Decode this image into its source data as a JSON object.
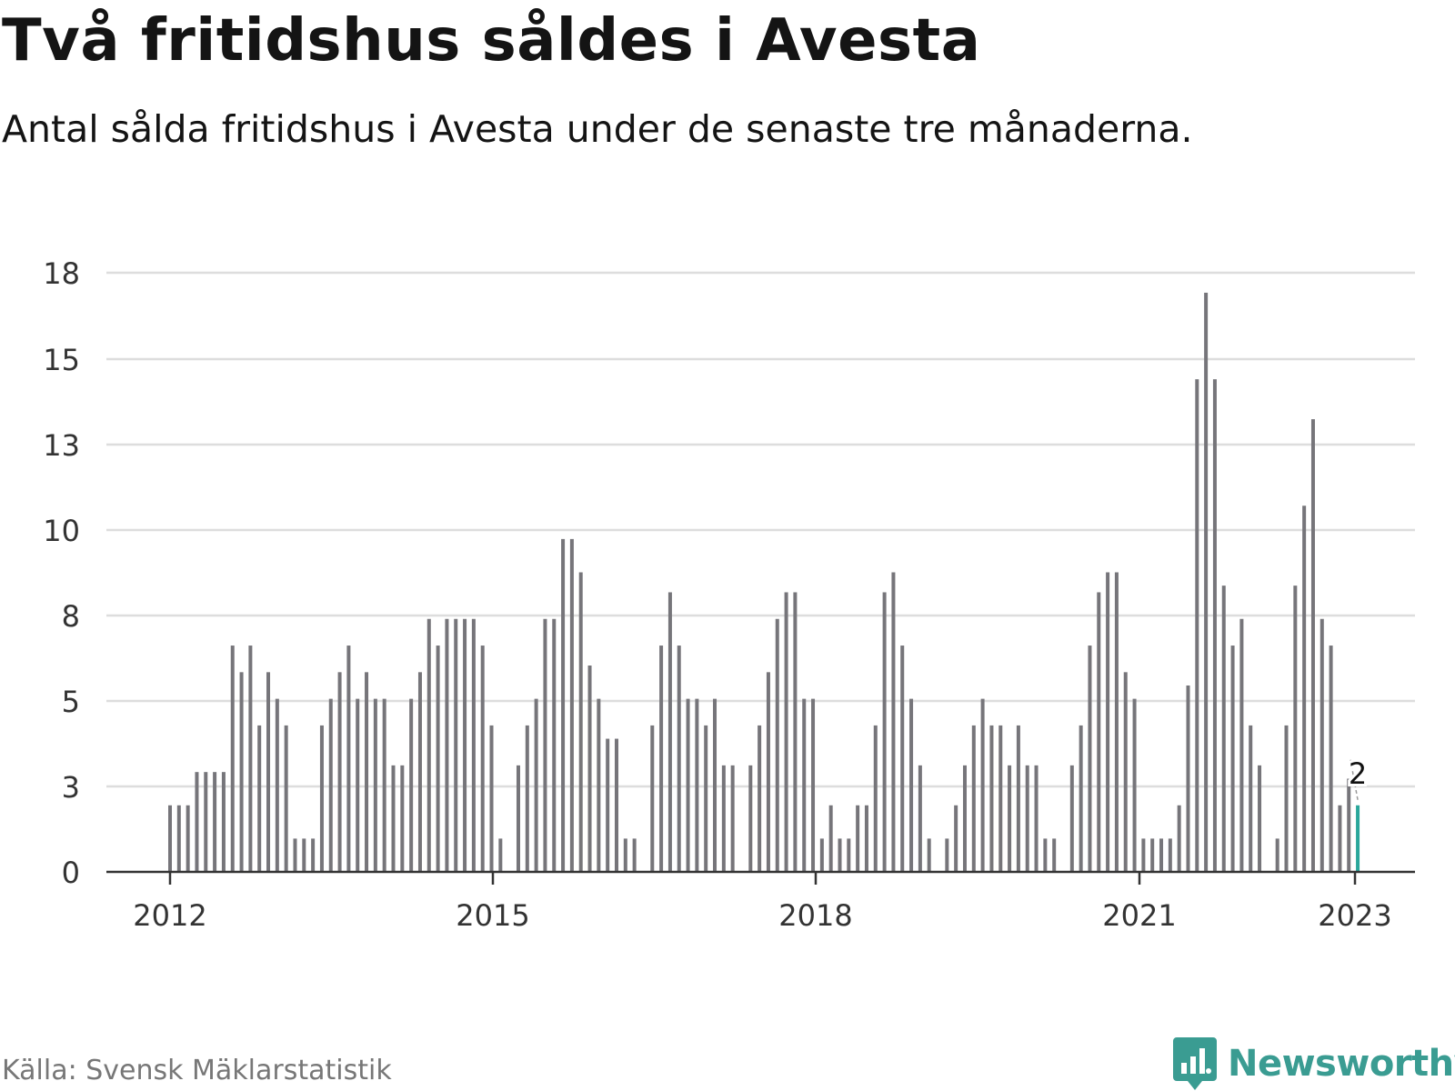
{
  "title": "Två fritidshus såldes i Avesta",
  "subtitle": "Antal sålda fritidshus i Avesta under de senaste tre månaderna.",
  "source": "Källa: Svensk Mäklarstatistik",
  "brand": "Newsworthy",
  "colors": {
    "bar": "#76757a",
    "highlight": "#2aa79b",
    "grid": "#dddddd",
    "axis": "#333333",
    "brand": "#3a9c92"
  },
  "chart_data": {
    "type": "bar",
    "title": "Två fritidshus såldes i Avesta",
    "subtitle": "Antal sålda fritidshus i Avesta under de senaste tre månaderna.",
    "ylim": [
      0,
      18
    ],
    "yticks": [
      0,
      3,
      5,
      8,
      10,
      13,
      15,
      18
    ],
    "xticks": [
      "2012",
      "2015",
      "2018",
      "2021",
      "2023"
    ],
    "grid": true,
    "highlight_label": "2",
    "series": [
      {
        "values": [
          2,
          2,
          2,
          3,
          3,
          3,
          3,
          6.8,
          6,
          6.8,
          4.4,
          6,
          5.2,
          4.4,
          1,
          1,
          1,
          4.4,
          5.2,
          6,
          6.8,
          5.2,
          6,
          5.2,
          5.2,
          3.2,
          3.2,
          5.2,
          6,
          7.6,
          6.8,
          7.6,
          7.6,
          7.6,
          7.6,
          6.8,
          4.4,
          1,
          null,
          3.2,
          4.4,
          5.2,
          7.6,
          7.6,
          10,
          10,
          9,
          6.2,
          5.2,
          4,
          4,
          1,
          1,
          null,
          4.4,
          6.8,
          8.4,
          6.8,
          5.2,
          5.2,
          4.4,
          5.2,
          3.2,
          3.2,
          null,
          3.2,
          4.4,
          6,
          7.6,
          8.4,
          8.4,
          5.2,
          5.2,
          1,
          2,
          1,
          1,
          2,
          2,
          4.4,
          8.4,
          9,
          6.8,
          5.2,
          3.2,
          1,
          null,
          1,
          2,
          3.2,
          4.4,
          5.2,
          4.4,
          4.4,
          3.2,
          4.4,
          3.2,
          3.2,
          1,
          1,
          null,
          3.2,
          4.4,
          6.8,
          8.4,
          9,
          9,
          6,
          5.2,
          1,
          1,
          1,
          1,
          2,
          5.6,
          14.8,
          17.4,
          14.8,
          8.6,
          6.8,
          7.6,
          4.4,
          3.2,
          null,
          1,
          4.4,
          8.6,
          11,
          13.6,
          7.6,
          6.8,
          2,
          2.8,
          2
        ]
      }
    ]
  }
}
